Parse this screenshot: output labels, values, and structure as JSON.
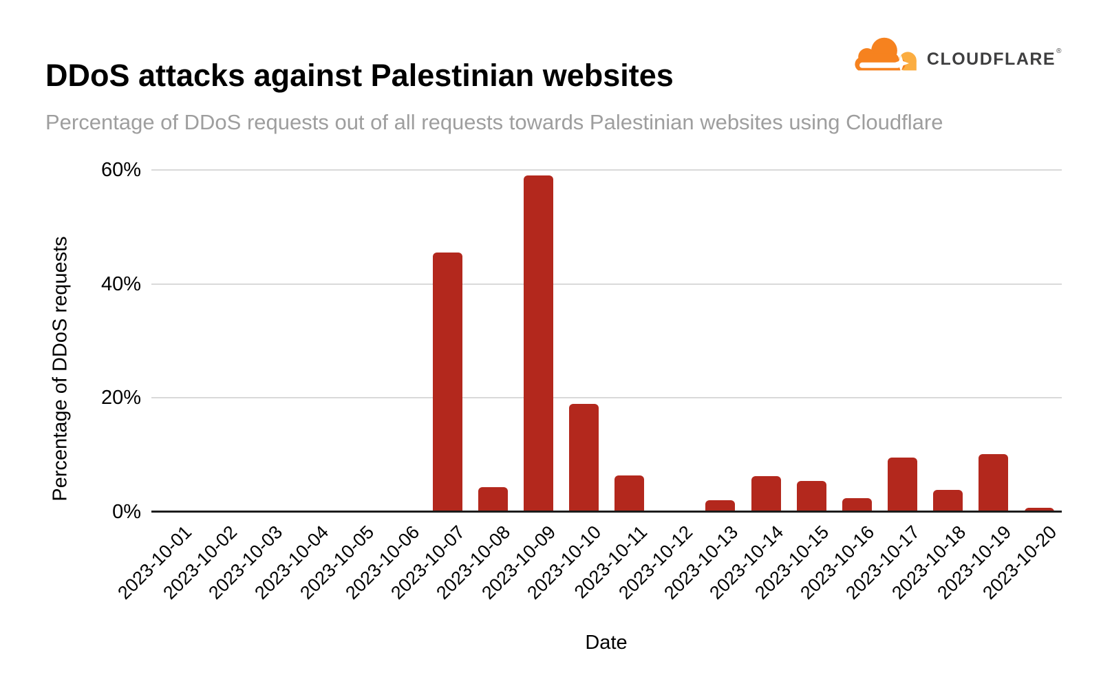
{
  "header": {
    "title": "DDoS attacks against Palestinian websites",
    "subtitle": "Percentage of DDoS requests out of all requests towards Palestinian websites using Cloudflare"
  },
  "logo": {
    "text": "CLOUDFLARE",
    "registered": "®",
    "cloud_color": "#F6821F",
    "cloud_light_color": "#FBAD41",
    "text_color": "#3F3F40"
  },
  "chart_data": {
    "type": "bar",
    "title": "DDoS attacks against Palestinian websites",
    "subtitle": "Percentage of DDoS requests out of all requests towards Palestinian websites using Cloudflare",
    "categories": [
      "2023-10-01",
      "2023-10-02",
      "2023-10-03",
      "2023-10-04",
      "2023-10-05",
      "2023-10-06",
      "2023-10-07",
      "2023-10-08",
      "2023-10-09",
      "2023-10-10",
      "2023-10-11",
      "2023-10-12",
      "2023-10-13",
      "2023-10-14",
      "2023-10-15",
      "2023-10-16",
      "2023-10-17",
      "2023-10-18",
      "2023-10-19",
      "2023-10-20"
    ],
    "values": [
      0,
      0,
      0,
      0,
      0,
      0,
      45.5,
      4.3,
      59,
      19,
      6.4,
      0,
      2.1,
      6.3,
      5.4,
      2.4,
      9.5,
      3.9,
      10.1,
      0.7
    ],
    "xlabel": "Date",
    "ylabel": "Percentage of DDoS requests",
    "ylim": [
      0,
      60
    ],
    "yticks": [
      0,
      20,
      40,
      60
    ],
    "ytick_labels": [
      "0%",
      "20%",
      "40%",
      "60%"
    ],
    "bar_color": "#B3281D",
    "gridline_color": "#D9D9D9",
    "grid": true,
    "legend": false
  }
}
